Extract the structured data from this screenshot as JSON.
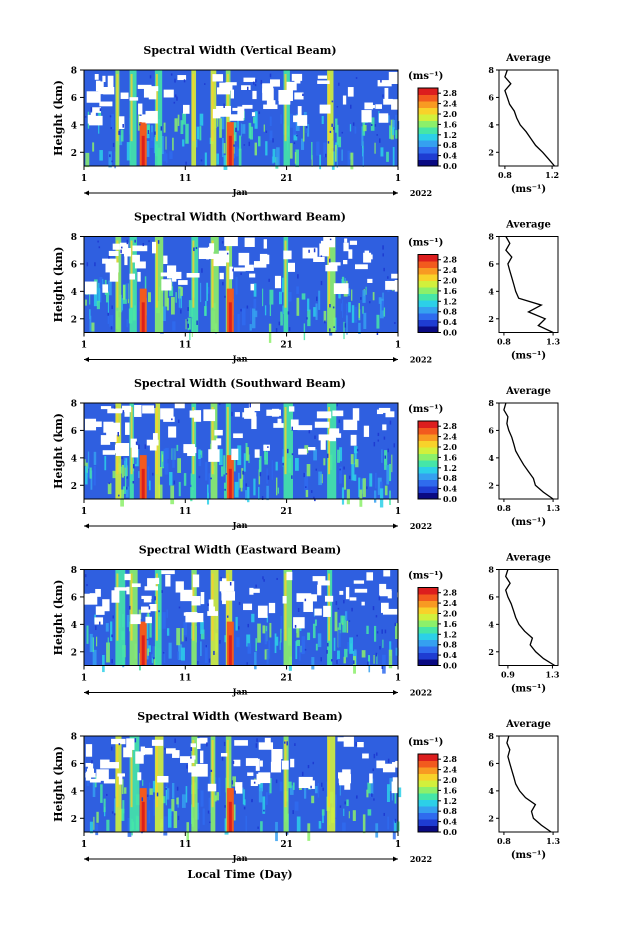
{
  "page": {
    "xlabel": "Local Time (Day)",
    "year": "2022",
    "month": "Jan",
    "date_ticks": [
      "1",
      "11",
      "21",
      "1"
    ],
    "height_label": "Height (km)",
    "height_ticks": [
      "2",
      "4",
      "6",
      "8"
    ],
    "unit_label": "(ms⁻¹)",
    "average_title": "Average"
  },
  "colormap": [
    "#0a0a82",
    "#1e3cd2",
    "#2f6bee",
    "#35a0f0",
    "#2cd0e8",
    "#45e6a8",
    "#8cf06a",
    "#d2f03c",
    "#f8d22a",
    "#f89a22",
    "#f25a1e",
    "#dc1e1e"
  ],
  "chart_data": [
    {
      "type": "heatmap",
      "title": "Spectral Width (Vertical Beam)",
      "xlabel": "Local Time (Day)",
      "ylabel": "Height (km)",
      "xlim": [
        1,
        32
      ],
      "ylim": [
        1,
        8
      ],
      "colorbar": {
        "label": "(ms⁻¹)",
        "ticks": [
          "0.0",
          "0.4",
          "0.8",
          "1.2",
          "1.6",
          "2.0",
          "2.4",
          "2.8"
        ],
        "range": [
          0,
          3.0
        ]
      },
      "average_profile": {
        "title": "Average",
        "xlabel": "(ms⁻¹)",
        "xticks": [
          "0.8",
          "1.2"
        ],
        "xlim": [
          0.75,
          1.25
        ],
        "height": [
          1.0,
          1.5,
          2.0,
          2.5,
          3.0,
          3.5,
          4.0,
          4.5,
          5.0,
          5.5,
          6.0,
          6.5,
          7.0,
          7.5,
          8.0
        ],
        "values": [
          1.22,
          1.17,
          1.12,
          1.06,
          1.02,
          0.98,
          0.93,
          0.9,
          0.88,
          0.84,
          0.82,
          0.8,
          0.85,
          0.8,
          0.82
        ]
      }
    },
    {
      "type": "heatmap",
      "title": "Spectral Width (Northward Beam)",
      "xlabel": "Local Time (Day)",
      "ylabel": "Height (km)",
      "xlim": [
        1,
        32
      ],
      "ylim": [
        1,
        8
      ],
      "colorbar": {
        "label": "(ms⁻¹)",
        "ticks": [
          "0.0",
          "0.4",
          "0.8",
          "1.2",
          "1.6",
          "2.0",
          "2.4",
          "2.8"
        ],
        "range": [
          0,
          3.0
        ]
      },
      "average_profile": {
        "title": "Average",
        "xlabel": "(ms⁻¹)",
        "xticks": [
          "0.8",
          "1.3"
        ],
        "xlim": [
          0.75,
          1.35
        ],
        "height": [
          1.0,
          1.5,
          2.0,
          2.5,
          3.0,
          3.5,
          4.0,
          4.5,
          5.0,
          5.5,
          6.0,
          6.5,
          7.0,
          7.5,
          8.0
        ],
        "values": [
          1.3,
          1.15,
          1.22,
          1.05,
          1.18,
          0.95,
          0.92,
          0.9,
          0.88,
          0.86,
          0.84,
          0.88,
          0.82,
          0.86,
          0.82
        ]
      }
    },
    {
      "type": "heatmap",
      "title": "Spectral Width (Southward Beam)",
      "xlabel": "Local Time (Day)",
      "ylabel": "Height (km)",
      "xlim": [
        1,
        32
      ],
      "ylim": [
        1,
        8
      ],
      "colorbar": {
        "label": "(ms⁻¹)",
        "ticks": [
          "0.0",
          "0.4",
          "0.8",
          "1.2",
          "1.6",
          "2.0",
          "2.4",
          "2.8"
        ],
        "range": [
          0,
          3.0
        ]
      },
      "average_profile": {
        "title": "Average",
        "xlabel": "(ms⁻¹)",
        "xticks": [
          "0.8",
          "1.3"
        ],
        "xlim": [
          0.75,
          1.35
        ],
        "height": [
          1.0,
          1.5,
          2.0,
          2.5,
          3.0,
          3.5,
          4.0,
          4.5,
          5.0,
          5.5,
          6.0,
          6.5,
          7.0,
          7.5,
          8.0
        ],
        "values": [
          1.3,
          1.2,
          1.12,
          1.1,
          1.05,
          1.0,
          0.96,
          0.92,
          0.9,
          0.88,
          0.85,
          0.83,
          0.84,
          0.8,
          0.82
        ]
      }
    },
    {
      "type": "heatmap",
      "title": "Spectral Width (Eastward Beam)",
      "xlabel": "Local Time (Day)",
      "ylabel": "Height (km)",
      "xlim": [
        1,
        32
      ],
      "ylim": [
        1,
        8
      ],
      "colorbar": {
        "label": "(ms⁻¹)",
        "ticks": [
          "0.0",
          "0.4",
          "0.8",
          "1.2",
          "1.6",
          "2.0",
          "2.4",
          "2.8"
        ],
        "range": [
          0,
          3.0
        ]
      },
      "average_profile": {
        "title": "Average",
        "xlabel": "(ms⁻¹)",
        "xticks": [
          "0.9",
          "1.3"
        ],
        "xlim": [
          0.82,
          1.35
        ],
        "height": [
          1.0,
          1.5,
          2.0,
          2.5,
          3.0,
          3.5,
          4.0,
          4.5,
          5.0,
          5.5,
          6.0,
          6.5,
          7.0,
          7.5,
          8.0
        ],
        "values": [
          1.32,
          1.22,
          1.15,
          1.1,
          1.12,
          1.05,
          1.0,
          0.97,
          0.95,
          0.93,
          0.9,
          0.88,
          0.92,
          0.88,
          0.9
        ]
      }
    },
    {
      "type": "heatmap",
      "title": "Spectral Width (Westward Beam)",
      "xlabel": "Local Time (Day)",
      "ylabel": "Height (km)",
      "xlim": [
        1,
        32
      ],
      "ylim": [
        1,
        8
      ],
      "colorbar": {
        "label": "(ms⁻¹)",
        "ticks": [
          "0.0",
          "0.4",
          "0.8",
          "1.2",
          "1.6",
          "2.0",
          "2.4",
          "2.8"
        ],
        "range": [
          0,
          3.0
        ]
      },
      "average_profile": {
        "title": "Average",
        "xlabel": "(ms⁻¹)",
        "xticks": [
          "0.8",
          "1.3"
        ],
        "xlim": [
          0.75,
          1.35
        ],
        "height": [
          1.0,
          1.5,
          2.0,
          2.5,
          3.0,
          3.5,
          4.0,
          4.5,
          5.0,
          5.5,
          6.0,
          6.5,
          7.0,
          7.5,
          8.0
        ],
        "values": [
          1.28,
          1.18,
          1.1,
          1.08,
          1.12,
          1.02,
          0.96,
          0.92,
          0.9,
          0.88,
          0.86,
          0.84,
          0.86,
          0.83,
          0.85
        ]
      }
    }
  ]
}
